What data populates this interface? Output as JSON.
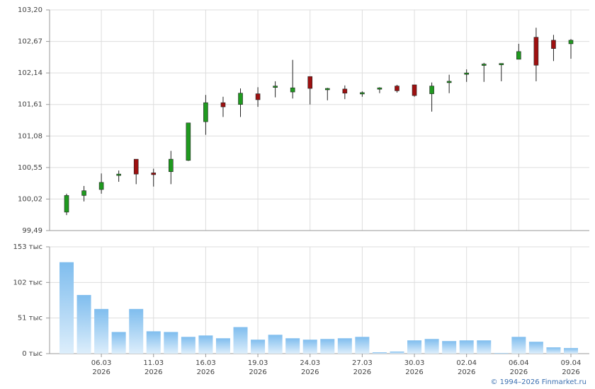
{
  "chart_data": [
    {
      "type": "candlestick",
      "categories": [
        null,
        null,
        "06.03\n2026",
        null,
        null,
        "11.03\n2026",
        null,
        null,
        "16.03\n2026",
        null,
        null,
        "19.03\n2026",
        null,
        null,
        "24.03\n2026",
        null,
        null,
        "27.03\n2026",
        null,
        null,
        "30.03\n2026",
        null,
        null,
        "02.04\n2026",
        null,
        null,
        "06.04\n2026",
        null,
        null,
        "09.04\n2026"
      ],
      "open": [
        99.8,
        100.08,
        100.18,
        100.42,
        100.69,
        100.46,
        100.48,
        100.67,
        101.32,
        101.64,
        101.61,
        101.79,
        101.91,
        101.82,
        102.08,
        101.87,
        101.87,
        101.8,
        101.88,
        101.92,
        101.94,
        101.79,
        101.99,
        102.12,
        102.28,
        102.29,
        102.37,
        102.74,
        102.69,
        102.63
      ],
      "high": [
        100.11,
        100.24,
        100.45,
        100.5,
        100.69,
        100.53,
        100.83,
        101.3,
        101.77,
        101.74,
        101.88,
        101.9,
        102.0,
        102.36,
        102.08,
        101.89,
        101.93,
        101.83,
        101.9,
        101.94,
        101.94,
        101.98,
        102.11,
        102.2,
        102.31,
        102.3,
        102.63,
        102.9,
        102.78,
        102.71
      ],
      "low": [
        99.75,
        99.98,
        100.11,
        100.31,
        100.27,
        100.23,
        100.27,
        100.66,
        101.1,
        101.4,
        101.4,
        101.57,
        101.73,
        101.71,
        101.61,
        101.68,
        101.7,
        101.74,
        101.8,
        101.81,
        101.74,
        101.49,
        101.8,
        101.99,
        101.99,
        102.0,
        102.37,
        102.0,
        102.34,
        102.38
      ],
      "close": [
        100.08,
        100.16,
        100.3,
        100.44,
        100.44,
        100.43,
        100.69,
        101.3,
        101.64,
        101.57,
        101.8,
        101.69,
        101.92,
        101.89,
        101.88,
        101.88,
        101.8,
        101.81,
        101.89,
        101.84,
        101.76,
        101.92,
        102.0,
        102.14,
        102.29,
        102.3,
        102.5,
        102.27,
        102.55,
        102.69
      ],
      "up_color": "#1f9a1f",
      "down_color": "#9e1010",
      "ylim": [
        99.49,
        103.2
      ],
      "yticks": [
        {
          "value": 99.49,
          "label": "99,49"
        },
        {
          "value": 100.02,
          "label": "100,02"
        },
        {
          "value": 100.55,
          "label": "100,55"
        },
        {
          "value": 101.08,
          "label": "101,08"
        },
        {
          "value": 101.61,
          "label": "101,61"
        },
        {
          "value": 102.14,
          "label": "102,14"
        },
        {
          "value": 102.67,
          "label": "102,67"
        },
        {
          "value": 103.2,
          "label": "103,20"
        }
      ],
      "grid": true
    },
    {
      "type": "bar",
      "values": [
        131,
        84,
        64,
        31,
        64,
        32,
        31,
        24,
        26,
        22,
        38,
        20,
        27,
        22,
        20,
        21,
        22,
        24,
        2,
        3,
        19,
        21,
        18,
        19,
        19,
        1,
        24,
        17,
        9,
        8
      ],
      "color": "#7fbdee",
      "ylim": [
        0,
        153
      ],
      "yticks": [
        {
          "value": 0,
          "label": "0 тыс"
        },
        {
          "value": 51,
          "label": "51 тыс"
        },
        {
          "value": 102,
          "label": "102 тыс"
        },
        {
          "value": 153,
          "label": "153 тыс"
        }
      ],
      "grid": true
    }
  ],
  "footer": "© 1994–2026 Finmarket.ru"
}
